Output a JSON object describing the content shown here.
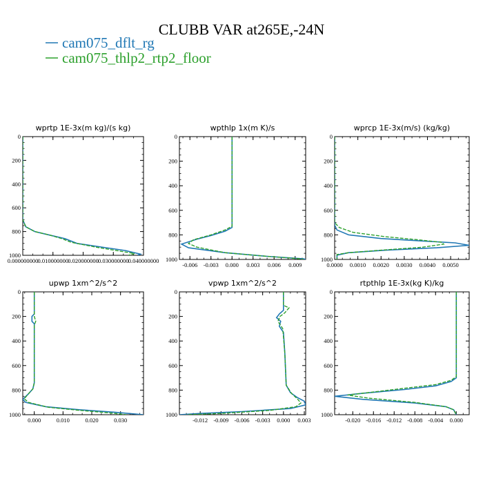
{
  "figure": {
    "title": "CLUBB VAR at265E,-24N",
    "legend": [
      {
        "label": "cam075_dflt_rg",
        "color": "#1f77b4",
        "dash": "solid"
      },
      {
        "label": "cam075_thlp2_rtp2_floor",
        "color": "#2ca02c",
        "dash": "dashed"
      }
    ]
  },
  "chart_data": [
    {
      "type": "line",
      "title": "wprtp  1E-3x(m kg)/(s kg)",
      "xlim": [
        0,
        0.04
      ],
      "ylim": [
        1000,
        0
      ],
      "xticks": [
        0,
        0.01,
        0.02,
        0.03,
        0.04
      ],
      "xtick_labels": [
        "0.000000000",
        "0.010000000",
        "0.020000000",
        "0.030000000",
        "0.040000000"
      ],
      "yticks": [
        0,
        200,
        400,
        600,
        800,
        1000
      ],
      "grid": false,
      "series": [
        {
          "name": "cam075_dflt_rg",
          "points": [
            [
              0,
              0
            ],
            [
              0,
              700
            ],
            [
              0.001,
              760
            ],
            [
              0.004,
              800
            ],
            [
              0.009,
              830
            ],
            [
              0.014,
              860
            ],
            [
              0.018,
              900
            ],
            [
              0.026,
              930
            ],
            [
              0.034,
              960
            ],
            [
              0.039,
              990
            ],
            [
              0.038,
              1000
            ]
          ]
        },
        {
          "name": "cam075_thlp2_rtp2_floor",
          "points": [
            [
              0,
              0
            ],
            [
              0,
              700
            ],
            [
              0.001,
              760
            ],
            [
              0.004,
              800
            ],
            [
              0.009,
              830
            ],
            [
              0.013,
              860
            ],
            [
              0.016,
              890
            ],
            [
              0.024,
              930
            ],
            [
              0.031,
              960
            ],
            [
              0.037,
              985
            ],
            [
              0.035,
              1000
            ]
          ]
        }
      ]
    },
    {
      "type": "line",
      "title": "wpthlp  1x(m K)/s",
      "xlim": [
        -0.0075,
        0.0105
      ],
      "ylim": [
        1000,
        0
      ],
      "xticks": [
        -0.006,
        -0.003,
        0,
        0.003,
        0.006,
        0.009
      ],
      "xtick_labels": [
        "-0.006",
        "-0.003",
        "0.000",
        "0.003",
        "0.006",
        "0.009"
      ],
      "yticks": [
        0,
        200,
        400,
        600,
        800,
        1000
      ],
      "grid": false,
      "series": [
        {
          "name": "cam075_dflt_rg",
          "points": [
            [
              0,
              0
            ],
            [
              0,
              740
            ],
            [
              -0.001,
              770
            ],
            [
              -0.003,
              805
            ],
            [
              -0.005,
              835
            ],
            [
              -0.0072,
              875
            ],
            [
              -0.0062,
              905
            ],
            [
              -0.001,
              945
            ],
            [
              0.005,
              975
            ],
            [
              0.0102,
              995
            ],
            [
              0.0105,
              1000
            ]
          ]
        },
        {
          "name": "cam075_thlp2_rtp2_floor",
          "points": [
            [
              0,
              0
            ],
            [
              0,
              730
            ],
            [
              -0.001,
              760
            ],
            [
              -0.003,
              800
            ],
            [
              -0.0055,
              840
            ],
            [
              -0.0062,
              870
            ],
            [
              -0.005,
              900
            ],
            [
              -0.001,
              945
            ],
            [
              0.005,
              975
            ],
            [
              0.0098,
              995
            ],
            [
              0.0102,
              1000
            ]
          ]
        }
      ]
    },
    {
      "type": "line",
      "title": "wprcp  1E-3x(m/s) (kg/kg)",
      "xlim": [
        0,
        0.0058
      ],
      "ylim": [
        1000,
        0
      ],
      "xticks": [
        0,
        0.001,
        0.002,
        0.003,
        0.004,
        0.005
      ],
      "xtick_labels": [
        "0.0000",
        "0.0010",
        "0.0020",
        "0.0030",
        "0.0040",
        "0.0050"
      ],
      "yticks": [
        0,
        200,
        400,
        600,
        800,
        1000
      ],
      "grid": false,
      "series": [
        {
          "name": "cam075_dflt_rg",
          "points": [
            [
              0,
              0
            ],
            [
              0,
              720
            ],
            [
              0.0001,
              760
            ],
            [
              0.0006,
              800
            ],
            [
              0.002,
              830
            ],
            [
              0.0038,
              850
            ],
            [
              0.0052,
              865
            ],
            [
              0.0058,
              885
            ],
            [
              0.0044,
              905
            ],
            [
              0.0022,
              925
            ],
            [
              0.0006,
              945
            ],
            [
              0.0001,
              965
            ],
            [
              0.0001,
              1000
            ]
          ]
        },
        {
          "name": "cam075_thlp2_rtp2_floor",
          "points": [
            [
              0,
              0
            ],
            [
              0,
              700
            ],
            [
              0.0002,
              740
            ],
            [
              0.0008,
              780
            ],
            [
              0.0022,
              815
            ],
            [
              0.0036,
              840
            ],
            [
              0.0046,
              860
            ],
            [
              0.0047,
              875
            ],
            [
              0.0038,
              900
            ],
            [
              0.002,
              925
            ],
            [
              0.0006,
              945
            ],
            [
              0.0001,
              960
            ],
            [
              0.0001,
              1000
            ]
          ]
        }
      ]
    },
    {
      "type": "line",
      "title": "upwp  1xm^2/s^2",
      "xlim": [
        -0.004,
        0.038
      ],
      "ylim": [
        1000,
        0
      ],
      "xticks": [
        0,
        0.01,
        0.02,
        0.03
      ],
      "xtick_labels": [
        "0.000",
        "0.010",
        "0.020",
        "0.030"
      ],
      "yticks": [
        0,
        200,
        400,
        600,
        800,
        1000
      ],
      "grid": false,
      "series": [
        {
          "name": "cam075_dflt_rg",
          "points": [
            [
              0,
              0
            ],
            [
              0,
              180
            ],
            [
              -0.0008,
              200
            ],
            [
              -0.0008,
              240
            ],
            [
              0,
              260
            ],
            [
              0,
              740
            ],
            [
              -0.0005,
              790
            ],
            [
              -0.002,
              830
            ],
            [
              -0.004,
              875
            ],
            [
              -0.003,
              900
            ],
            [
              0.004,
              935
            ],
            [
              0.016,
              960
            ],
            [
              0.028,
              980
            ],
            [
              0.038,
              1000
            ]
          ]
        },
        {
          "name": "cam075_thlp2_rtp2_floor",
          "points": [
            [
              0,
              0
            ],
            [
              0,
              200
            ],
            [
              0.0005,
              240
            ],
            [
              0,
              270
            ],
            [
              0,
              740
            ],
            [
              -0.0005,
              790
            ],
            [
              -0.002,
              830
            ],
            [
              -0.0035,
              870
            ],
            [
              -0.002,
              900
            ],
            [
              0.005,
              940
            ],
            [
              0.016,
              965
            ],
            [
              0.026,
              985
            ],
            [
              0.032,
              1000
            ]
          ]
        }
      ]
    },
    {
      "type": "line",
      "title": "vpwp  1xm^2/s^2",
      "xlim": [
        -0.015,
        0.0032
      ],
      "ylim": [
        1000,
        0
      ],
      "xticks": [
        -0.012,
        -0.009,
        -0.006,
        -0.003,
        0,
        0.003
      ],
      "xtick_labels": [
        "-0.012",
        "-0.009",
        "-0.006",
        "-0.003",
        "0.000",
        "0.003"
      ],
      "yticks": [
        0,
        200,
        400,
        600,
        800,
        1000
      ],
      "grid": false,
      "series": [
        {
          "name": "cam075_dflt_rg",
          "points": [
            [
              0,
              0
            ],
            [
              0,
              150
            ],
            [
              -0.0006,
              180
            ],
            [
              -0.001,
              210
            ],
            [
              -0.0004,
              240
            ],
            [
              -0.0006,
              280
            ],
            [
              0,
              330
            ],
            [
              0.0002,
              500
            ],
            [
              0.0004,
              760
            ],
            [
              0.001,
              820
            ],
            [
              0.002,
              860
            ],
            [
              0.003,
              890
            ],
            [
              0.0032,
              920
            ],
            [
              0.001,
              950
            ],
            [
              -0.006,
              975
            ],
            [
              -0.012,
              990
            ],
            [
              -0.015,
              1000
            ]
          ]
        },
        {
          "name": "cam075_thlp2_rtp2_floor",
          "points": [
            [
              0,
              0
            ],
            [
              0,
              110
            ],
            [
              0.0008,
              130
            ],
            [
              0.0002,
              170
            ],
            [
              -0.0005,
              200
            ],
            [
              -0.0008,
              240
            ],
            [
              -0.0001,
              300
            ],
            [
              0.0002,
              500
            ],
            [
              0.0004,
              760
            ],
            [
              0.0012,
              830
            ],
            [
              0.002,
              870
            ],
            [
              0.0025,
              905
            ],
            [
              0.0018,
              935
            ],
            [
              -0.002,
              965
            ],
            [
              -0.009,
              990
            ],
            [
              -0.014,
              1000
            ]
          ]
        }
      ]
    },
    {
      "type": "line",
      "title": "rtpthlp  1E-3x(kg K)/kg",
      "xlim": [
        -0.0235,
        0.0025
      ],
      "ylim": [
        1000,
        0
      ],
      "xticks": [
        -0.02,
        -0.016,
        -0.012,
        -0.008,
        -0.004,
        0
      ],
      "xtick_labels": [
        "-0.020",
        "-0.016",
        "-0.012",
        "-0.008",
        "-0.004",
        "0.000"
      ],
      "yticks": [
        0,
        200,
        400,
        600,
        800,
        1000
      ],
      "grid": false,
      "series": [
        {
          "name": "cam075_dflt_rg",
          "points": [
            [
              0,
              0
            ],
            [
              0,
              700
            ],
            [
              -0.001,
              730
            ],
            [
              -0.004,
              765
            ],
            [
              -0.01,
              795
            ],
            [
              -0.018,
              825
            ],
            [
              -0.0235,
              850
            ],
            [
              -0.018,
              875
            ],
            [
              -0.008,
              905
            ],
            [
              -0.002,
              935
            ],
            [
              -0.0005,
              960
            ],
            [
              0,
              1000
            ]
          ]
        },
        {
          "name": "cam075_thlp2_rtp2_floor",
          "points": [
            [
              0,
              0
            ],
            [
              0,
              690
            ],
            [
              -0.001,
              720
            ],
            [
              -0.004,
              755
            ],
            [
              -0.01,
              785
            ],
            [
              -0.016,
              815
            ],
            [
              -0.021,
              840
            ],
            [
              -0.017,
              865
            ],
            [
              -0.008,
              900
            ],
            [
              -0.002,
              935
            ],
            [
              -0.0005,
              960
            ],
            [
              0,
              1000
            ]
          ]
        }
      ]
    }
  ]
}
